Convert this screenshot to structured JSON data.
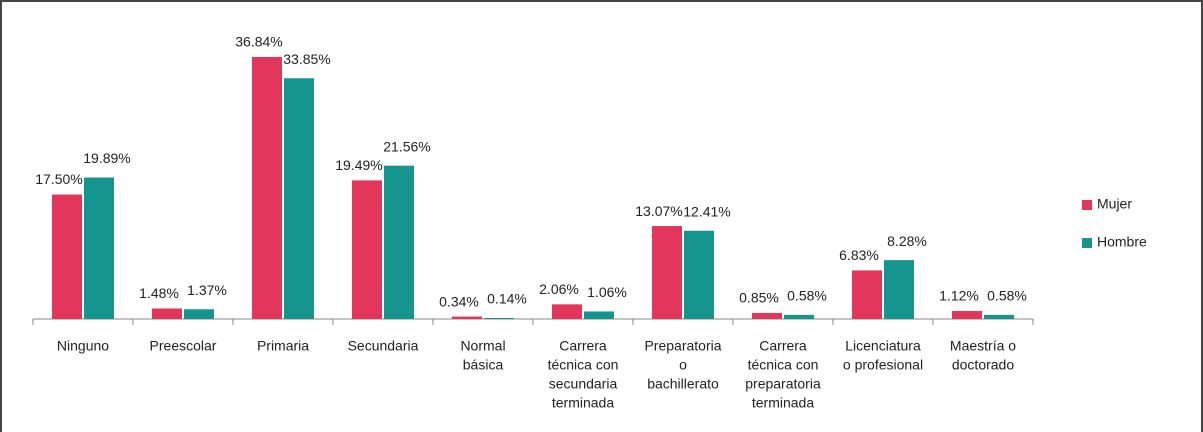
{
  "chart_data": {
    "type": "bar",
    "categories": [
      [
        "Ninguno"
      ],
      [
        "Preescolar"
      ],
      [
        "Primaria"
      ],
      [
        "Secundaria"
      ],
      [
        "Normal",
        "básica"
      ],
      [
        "Carrera",
        "técnica con",
        "secundaria",
        "terminada"
      ],
      [
        "Preparatoria",
        "o",
        "bachillerato"
      ],
      [
        "Carrera",
        "técnica con",
        "preparatoria",
        "terminada"
      ],
      [
        "Licenciatura",
        "o profesional"
      ],
      [
        "Maestría o",
        "doctorado"
      ]
    ],
    "series": [
      {
        "name": "Mujer",
        "color": "#e2365a",
        "values": [
          17.5,
          1.48,
          36.84,
          19.49,
          0.34,
          2.06,
          13.07,
          0.85,
          6.83,
          1.12
        ],
        "value_labels": [
          "17.50%",
          "1.48%",
          "36.84%",
          "19.49%",
          "0.34%",
          "2.06%",
          "13.07%",
          "0.85%",
          "6.83%",
          "1.12%"
        ]
      },
      {
        "name": "Hombre",
        "color": "#16958f",
        "values": [
          19.89,
          1.37,
          33.85,
          21.56,
          0.14,
          1.06,
          12.41,
          0.58,
          8.28,
          0.58
        ],
        "value_labels": [
          "19.89%",
          "1.37%",
          "33.85%",
          "21.56%",
          "0.14%",
          "1.06%",
          "12.41%",
          "0.58%",
          "8.28%",
          "0.58%"
        ]
      }
    ],
    "legend": "right"
  }
}
